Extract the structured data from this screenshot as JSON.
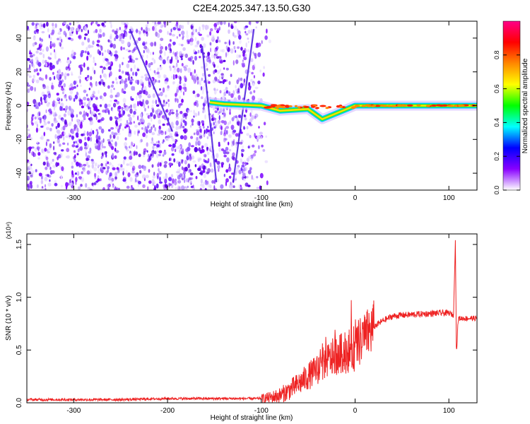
{
  "title": "C2E4.2025.347.13.50.G30",
  "chart_data": [
    {
      "type": "heatmap",
      "xlabel": "Height of straight line (km)",
      "ylabel": "Frequency (Hz)",
      "xlim": [
        -350,
        130
      ],
      "ylim": [
        -50,
        50
      ],
      "xticks": [
        -300,
        -200,
        -100,
        0,
        100
      ],
      "yticks": [
        -40,
        -20,
        0,
        20,
        40
      ],
      "colorbar": {
        "label": "Normalized spectral amplitude",
        "range": [
          0,
          1
        ],
        "ticks": [
          "0.0",
          "0.2",
          "0.4",
          "0.6",
          "0.8"
        ],
        "colors": [
          "#ffffff",
          "#8800ff",
          "#0000ff",
          "#00ffff",
          "#00ff00",
          "#ffff00",
          "#ff8800",
          "#ff0000",
          "#ff0088"
        ]
      },
      "features": {
        "noise_region_x": [
          -350,
          -100
        ],
        "carrier_band": [
          {
            "x": -155,
            "y": 2
          },
          {
            "x": -140,
            "y": 1
          },
          {
            "x": -100,
            "y": 0
          },
          {
            "x": -80,
            "y": -3
          },
          {
            "x": -50,
            "y": -2
          },
          {
            "x": -35,
            "y": -8
          },
          {
            "x": 0,
            "y": 0
          },
          {
            "x": 130,
            "y": 0
          }
        ],
        "streaks": [
          {
            "x": [
              -240,
              -195
            ],
            "y": [
              45,
              -15
            ]
          },
          {
            "x": [
              -130,
              -108
            ],
            "y": [
              -45,
              45
            ]
          },
          {
            "x": [
              -163,
              -148
            ],
            "y": [
              35,
              -45
            ]
          }
        ]
      }
    },
    {
      "type": "line",
      "xlabel": "Height of straight line (km)",
      "ylabel": "SNR (10 * v/v)",
      "y_multiplier": "(x10⁴)",
      "xlim": [
        -350,
        130
      ],
      "ylim": [
        0,
        1.6
      ],
      "xticks": [
        -300,
        -200,
        -100,
        0,
        100
      ],
      "yticks": [
        "0.0",
        "0.5",
        "1.0",
        "1.5"
      ],
      "color": "#ee2222",
      "x": [
        -350,
        -300,
        -250,
        -200,
        -150,
        -100,
        -90,
        -80,
        -70,
        -60,
        -50,
        -40,
        -30,
        -20,
        -10,
        0,
        10,
        20,
        30,
        40,
        50,
        70,
        90,
        100,
        105,
        107,
        108,
        110,
        115,
        120,
        130
      ],
      "y": [
        0.03,
        0.03,
        0.03,
        0.04,
        0.04,
        0.04,
        0.05,
        0.07,
        0.12,
        0.18,
        0.25,
        0.32,
        0.4,
        0.45,
        0.48,
        0.52,
        0.62,
        0.72,
        0.78,
        0.82,
        0.83,
        0.84,
        0.85,
        0.85,
        0.83,
        1.58,
        0.45,
        0.8,
        0.8,
        0.8,
        0.8
      ]
    }
  ]
}
